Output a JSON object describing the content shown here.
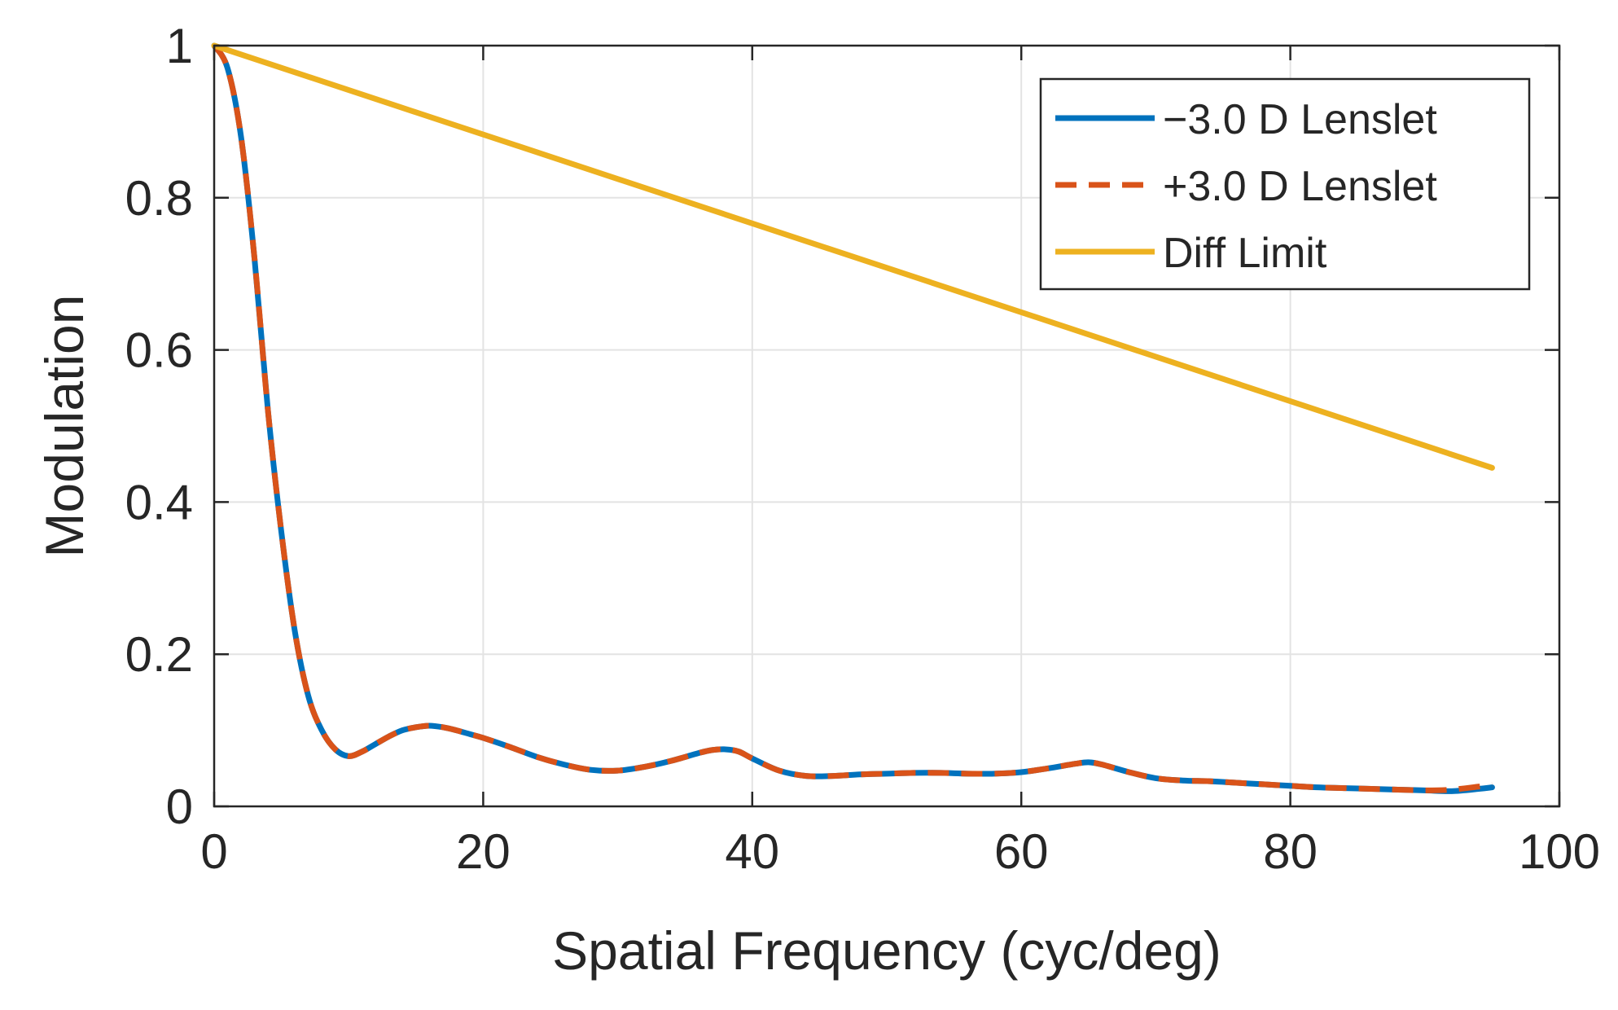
{
  "chart_data": {
    "type": "line",
    "title": "",
    "xlabel": "Spatial Frequency (cyc/deg)",
    "ylabel": "Modulation",
    "xlim": [
      0,
      100
    ],
    "ylim": [
      0,
      1
    ],
    "xticks": [
      0,
      20,
      40,
      60,
      80,
      100
    ],
    "yticks": [
      0,
      0.2,
      0.4,
      0.6,
      0.8,
      1
    ],
    "xtick_labels": [
      "0",
      "20",
      "40",
      "60",
      "80",
      "100"
    ],
    "ytick_labels": [
      "0",
      "0.2",
      "0.4",
      "0.6",
      "0.8",
      "1"
    ],
    "grid": true,
    "legend_position": "top-right",
    "series": [
      {
        "name": "−3.0 D Lenslet",
        "color": "#0072BD",
        "style": "solid",
        "x": [
          0,
          1,
          2,
          3,
          4,
          5,
          6,
          7,
          8,
          9,
          10,
          11,
          12,
          13,
          14,
          15,
          16,
          17,
          18,
          19,
          20,
          22,
          24,
          26,
          28,
          30,
          32,
          34,
          36,
          37,
          38,
          39,
          40,
          42,
          44,
          46,
          48,
          50,
          52,
          54,
          56,
          58,
          60,
          62,
          64,
          65,
          66,
          68,
          70,
          72,
          74,
          76,
          78,
          80,
          82,
          84,
          86,
          88,
          90,
          92,
          94,
          95
        ],
        "y": [
          1.0,
          0.97,
          0.88,
          0.72,
          0.52,
          0.36,
          0.23,
          0.145,
          0.1,
          0.075,
          0.066,
          0.072,
          0.082,
          0.092,
          0.1,
          0.104,
          0.106,
          0.104,
          0.1,
          0.095,
          0.09,
          0.078,
          0.065,
          0.055,
          0.048,
          0.047,
          0.052,
          0.06,
          0.07,
          0.074,
          0.075,
          0.072,
          0.063,
          0.047,
          0.04,
          0.04,
          0.042,
          0.043,
          0.044,
          0.044,
          0.043,
          0.043,
          0.045,
          0.05,
          0.056,
          0.058,
          0.055,
          0.045,
          0.037,
          0.034,
          0.033,
          0.031,
          0.029,
          0.027,
          0.025,
          0.024,
          0.023,
          0.022,
          0.021,
          0.02,
          0.023,
          0.025
        ]
      },
      {
        "name": "+3.0 D Lenslet",
        "color": "#D95319",
        "style": "dashed",
        "x": [
          0,
          1,
          2,
          3,
          4,
          5,
          6,
          7,
          8,
          9,
          10,
          11,
          12,
          13,
          14,
          15,
          16,
          17,
          18,
          19,
          20,
          22,
          24,
          26,
          28,
          30,
          32,
          34,
          36,
          37,
          38,
          39,
          40,
          42,
          44,
          46,
          48,
          50,
          52,
          54,
          56,
          58,
          60,
          62,
          64,
          65,
          66,
          68,
          70,
          72,
          74,
          76,
          78,
          80,
          82,
          84,
          86,
          88,
          90,
          92,
          94,
          95
        ],
        "y": [
          1.0,
          0.97,
          0.88,
          0.72,
          0.52,
          0.36,
          0.23,
          0.145,
          0.1,
          0.075,
          0.066,
          0.072,
          0.082,
          0.092,
          0.1,
          0.104,
          0.106,
          0.104,
          0.1,
          0.095,
          0.09,
          0.078,
          0.065,
          0.055,
          0.048,
          0.047,
          0.052,
          0.06,
          0.07,
          0.074,
          0.075,
          0.072,
          0.063,
          0.047,
          0.04,
          0.04,
          0.042,
          0.043,
          0.044,
          0.044,
          0.043,
          0.043,
          0.045,
          0.05,
          0.056,
          0.058,
          0.055,
          0.045,
          0.037,
          0.034,
          0.033,
          0.031,
          0.029,
          0.027,
          0.025,
          0.024,
          0.023,
          0.022,
          0.021,
          0.022,
          0.026,
          0.028
        ]
      },
      {
        "name": "Diff Limit",
        "color": "#EDB120",
        "style": "solid",
        "x": [
          0,
          95
        ],
        "y": [
          1.0,
          0.445
        ]
      }
    ]
  }
}
